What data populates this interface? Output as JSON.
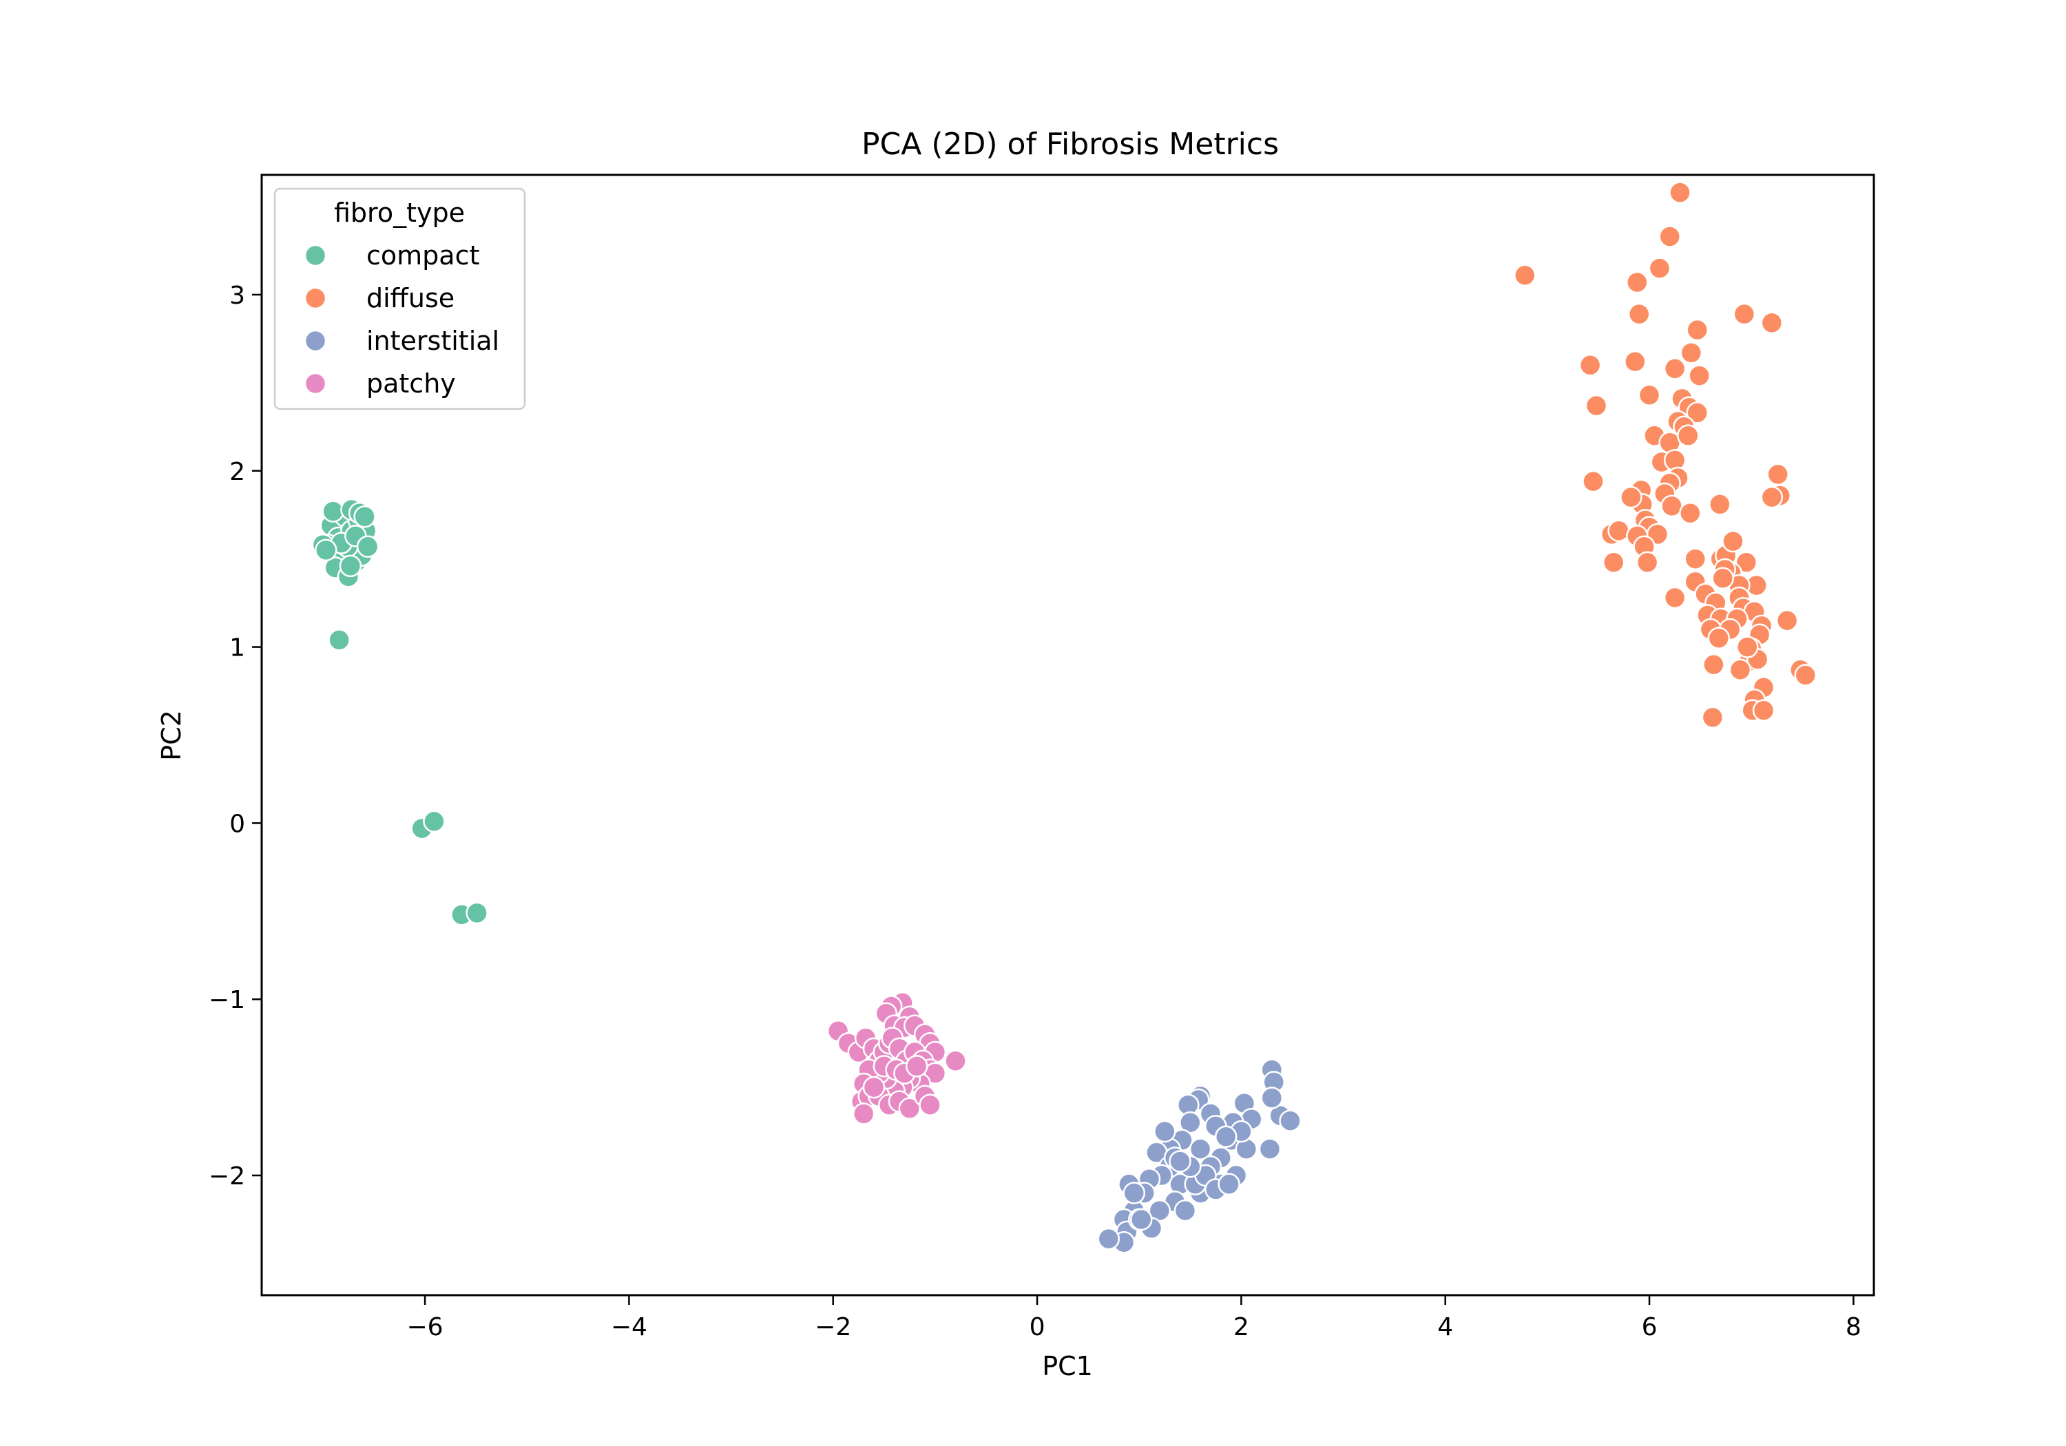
{
  "chart_data": {
    "type": "scatter",
    "title": "PCA (2D) of Fibrosis Metrics",
    "xlabel": "PC1",
    "ylabel": "PC2",
    "xlim": [
      -7.6,
      8.2
    ],
    "ylim": [
      -2.68,
      3.68
    ],
    "xticks": [
      -6,
      -4,
      -2,
      0,
      2,
      4,
      6,
      8
    ],
    "xtick_labels": [
      "−6",
      "−4",
      "−2",
      "0",
      "2",
      "4",
      "6",
      "8"
    ],
    "yticks": [
      -2,
      -1,
      0,
      1,
      2,
      3
    ],
    "ytick_labels": [
      "−2",
      "−1",
      "0",
      "1",
      "2",
      "3"
    ],
    "grid": false,
    "legend": {
      "title": "fibro_type",
      "placement": "top-left"
    },
    "series": [
      {
        "name": "compact",
        "color": "#66c2a5",
        "points": [
          [
            -6.92,
            1.69
          ],
          [
            -6.85,
            1.62
          ],
          [
            -6.78,
            1.74
          ],
          [
            -6.72,
            1.66
          ],
          [
            -6.65,
            1.72
          ],
          [
            -6.6,
            1.6
          ],
          [
            -6.7,
            1.55
          ],
          [
            -6.8,
            1.5
          ],
          [
            -6.88,
            1.45
          ],
          [
            -6.95,
            1.58
          ],
          [
            -7.0,
            1.58
          ],
          [
            -6.75,
            1.4
          ],
          [
            -6.68,
            1.48
          ],
          [
            -6.62,
            1.52
          ],
          [
            -6.58,
            1.66
          ],
          [
            -6.9,
            1.77
          ],
          [
            -6.72,
            1.78
          ],
          [
            -6.64,
            1.76
          ],
          [
            -6.76,
            1.57
          ],
          [
            -6.82,
            1.59
          ],
          [
            -6.97,
            1.55
          ],
          [
            -6.73,
            1.46
          ],
          [
            -6.68,
            1.63
          ],
          [
            -6.59,
            1.74
          ],
          [
            -6.56,
            1.57
          ],
          [
            -6.84,
            1.04
          ],
          [
            -6.03,
            -0.03
          ],
          [
            -5.91,
            0.01
          ],
          [
            -5.64,
            -0.52
          ],
          [
            -5.49,
            -0.51
          ]
        ]
      },
      {
        "name": "diffuse",
        "color": "#fc8d62",
        "points": [
          [
            4.78,
            3.11
          ],
          [
            6.3,
            3.58
          ],
          [
            6.2,
            3.33
          ],
          [
            6.1,
            3.15
          ],
          [
            5.88,
            3.07
          ],
          [
            6.93,
            2.89
          ],
          [
            7.2,
            2.84
          ],
          [
            5.9,
            2.89
          ],
          [
            6.47,
            2.8
          ],
          [
            6.41,
            2.67
          ],
          [
            5.42,
            2.6
          ],
          [
            5.86,
            2.62
          ],
          [
            6.25,
            2.58
          ],
          [
            6.49,
            2.54
          ],
          [
            5.48,
            2.37
          ],
          [
            6.0,
            2.43
          ],
          [
            6.32,
            2.41
          ],
          [
            6.39,
            2.36
          ],
          [
            6.47,
            2.33
          ],
          [
            6.28,
            2.28
          ],
          [
            6.34,
            2.25
          ],
          [
            6.05,
            2.2
          ],
          [
            6.2,
            2.16
          ],
          [
            6.38,
            2.2
          ],
          [
            6.12,
            2.05
          ],
          [
            6.25,
            2.06
          ],
          [
            6.28,
            1.96
          ],
          [
            6.2,
            1.93
          ],
          [
            5.45,
            1.94
          ],
          [
            5.92,
            1.89
          ],
          [
            6.15,
            1.87
          ],
          [
            5.93,
            1.81
          ],
          [
            6.22,
            1.8
          ],
          [
            6.69,
            1.81
          ],
          [
            7.26,
            1.98
          ],
          [
            7.28,
            1.86
          ],
          [
            7.2,
            1.85
          ],
          [
            5.63,
            1.64
          ],
          [
            5.7,
            1.66
          ],
          [
            5.82,
            1.85
          ],
          [
            5.96,
            1.72
          ],
          [
            6.0,
            1.68
          ],
          [
            6.08,
            1.64
          ],
          [
            6.4,
            1.76
          ],
          [
            5.88,
            1.63
          ],
          [
            5.95,
            1.57
          ],
          [
            5.98,
            1.48
          ],
          [
            5.65,
            1.48
          ],
          [
            6.45,
            1.5
          ],
          [
            6.7,
            1.5
          ],
          [
            6.75,
            1.52
          ],
          [
            6.82,
            1.6
          ],
          [
            6.95,
            1.48
          ],
          [
            6.8,
            1.42
          ],
          [
            6.74,
            1.44
          ],
          [
            7.05,
            1.35
          ],
          [
            6.88,
            1.35
          ],
          [
            6.45,
            1.37
          ],
          [
            6.55,
            1.3
          ],
          [
            6.88,
            1.28
          ],
          [
            6.25,
            1.28
          ],
          [
            6.65,
            1.25
          ],
          [
            6.92,
            1.22
          ],
          [
            7.03,
            1.2
          ],
          [
            6.57,
            1.18
          ],
          [
            6.7,
            1.16
          ],
          [
            6.86,
            1.16
          ],
          [
            6.6,
            1.1
          ],
          [
            6.79,
            1.1
          ],
          [
            7.1,
            1.12
          ],
          [
            7.08,
            1.07
          ],
          [
            6.68,
            1.05
          ],
          [
            7.35,
            1.15
          ],
          [
            7.0,
            0.99
          ],
          [
            6.98,
            0.92
          ],
          [
            7.06,
            0.93
          ],
          [
            6.63,
            0.9
          ],
          [
            6.89,
            0.87
          ],
          [
            7.48,
            0.87
          ],
          [
            7.53,
            0.84
          ],
          [
            7.12,
            0.77
          ],
          [
            7.03,
            0.7
          ],
          [
            7.01,
            0.64
          ],
          [
            7.12,
            0.64
          ],
          [
            6.62,
            0.6
          ],
          [
            6.96,
            1.0
          ],
          [
            6.72,
            1.39
          ]
        ]
      },
      {
        "name": "interstitial",
        "color": "#8da0cb",
        "points": [
          [
            2.3,
            -1.4
          ],
          [
            2.32,
            -1.47
          ],
          [
            2.38,
            -1.66
          ],
          [
            2.48,
            -1.69
          ],
          [
            2.3,
            -1.56
          ],
          [
            2.03,
            -1.59
          ],
          [
            2.1,
            -1.68
          ],
          [
            1.92,
            -1.7
          ],
          [
            1.6,
            -1.55
          ],
          [
            1.58,
            -1.57
          ],
          [
            1.48,
            -1.6
          ],
          [
            1.7,
            -1.65
          ],
          [
            1.75,
            -1.72
          ],
          [
            1.9,
            -1.8
          ],
          [
            2.05,
            -1.85
          ],
          [
            1.8,
            -1.9
          ],
          [
            1.5,
            -1.7
          ],
          [
            1.42,
            -1.8
          ],
          [
            1.3,
            -1.85
          ],
          [
            1.25,
            -1.75
          ],
          [
            1.17,
            -1.87
          ],
          [
            1.6,
            -1.85
          ],
          [
            1.7,
            -1.95
          ],
          [
            1.95,
            -2.0
          ],
          [
            1.8,
            -2.05
          ],
          [
            1.6,
            -2.1
          ],
          [
            1.4,
            -2.05
          ],
          [
            1.3,
            -1.95
          ],
          [
            1.22,
            -2.0
          ],
          [
            1.1,
            -2.02
          ],
          [
            1.35,
            -2.15
          ],
          [
            1.45,
            -2.2
          ],
          [
            1.2,
            -2.2
          ],
          [
            1.05,
            -2.1
          ],
          [
            0.9,
            -2.05
          ],
          [
            0.95,
            -2.2
          ],
          [
            0.85,
            -2.25
          ],
          [
            0.88,
            -2.32
          ],
          [
            1.0,
            -2.25
          ],
          [
            1.12,
            -2.3
          ],
          [
            0.85,
            -2.38
          ],
          [
            0.7,
            -2.36
          ],
          [
            1.55,
            -2.05
          ],
          [
            1.65,
            -2.0
          ],
          [
            2.28,
            -1.85
          ],
          [
            2.0,
            -1.75
          ],
          [
            1.85,
            -1.78
          ],
          [
            1.5,
            -1.95
          ],
          [
            1.35,
            -1.9
          ],
          [
            0.95,
            -2.1
          ],
          [
            1.02,
            -2.25
          ],
          [
            1.75,
            -2.08
          ],
          [
            1.88,
            -2.05
          ],
          [
            1.4,
            -1.92
          ]
        ]
      },
      {
        "name": "patchy",
        "color": "#e78ac3",
        "points": [
          [
            -1.32,
            -1.02
          ],
          [
            -1.43,
            -1.04
          ],
          [
            -1.48,
            -1.08
          ],
          [
            -1.4,
            -1.15
          ],
          [
            -1.25,
            -1.1
          ],
          [
            -1.3,
            -1.16
          ],
          [
            -1.2,
            -1.15
          ],
          [
            -1.1,
            -1.2
          ],
          [
            -1.05,
            -1.25
          ],
          [
            -1.0,
            -1.3
          ],
          [
            -0.8,
            -1.35
          ],
          [
            -1.95,
            -1.18
          ],
          [
            -1.85,
            -1.25
          ],
          [
            -1.75,
            -1.3
          ],
          [
            -1.68,
            -1.22
          ],
          [
            -1.6,
            -1.28
          ],
          [
            -1.55,
            -1.35
          ],
          [
            -1.5,
            -1.3
          ],
          [
            -1.45,
            -1.25
          ],
          [
            -1.42,
            -1.22
          ],
          [
            -1.35,
            -1.28
          ],
          [
            -1.28,
            -1.35
          ],
          [
            -1.2,
            -1.3
          ],
          [
            -1.12,
            -1.35
          ],
          [
            -1.05,
            -1.4
          ],
          [
            -1.0,
            -1.42
          ],
          [
            -1.15,
            -1.48
          ],
          [
            -1.25,
            -1.45
          ],
          [
            -1.32,
            -1.5
          ],
          [
            -1.4,
            -1.52
          ],
          [
            -1.48,
            -1.45
          ],
          [
            -1.55,
            -1.42
          ],
          [
            -1.65,
            -1.4
          ],
          [
            -1.7,
            -1.48
          ],
          [
            -1.72,
            -1.58
          ],
          [
            -1.65,
            -1.55
          ],
          [
            -1.55,
            -1.55
          ],
          [
            -1.45,
            -1.6
          ],
          [
            -1.35,
            -1.58
          ],
          [
            -1.25,
            -1.62
          ],
          [
            -1.1,
            -1.55
          ],
          [
            -1.05,
            -1.6
          ],
          [
            -1.7,
            -1.65
          ],
          [
            -1.6,
            -1.5
          ],
          [
            -1.5,
            -1.38
          ],
          [
            -1.38,
            -1.4
          ],
          [
            -1.3,
            -1.42
          ],
          [
            -1.18,
            -1.38
          ]
        ]
      }
    ]
  }
}
